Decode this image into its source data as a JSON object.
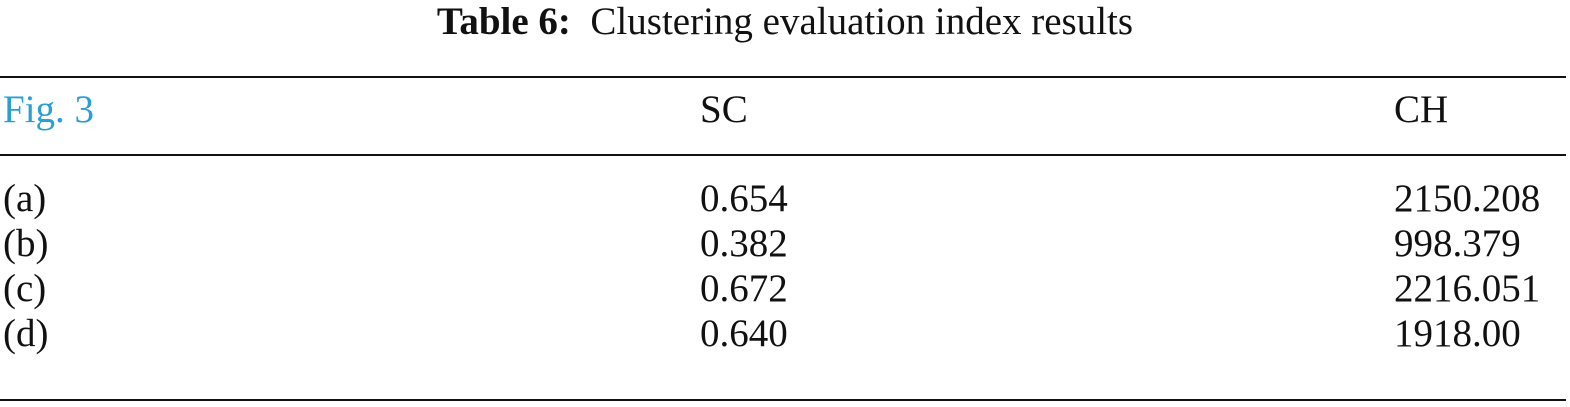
{
  "caption": {
    "label": "Table 6:",
    "text": "Clustering evaluation index results"
  },
  "table": {
    "header": [
      "Fig. 3",
      "SC",
      "CH"
    ],
    "rows": [
      [
        "(a)",
        "0.654",
        "2150.208"
      ],
      [
        "(b)",
        "0.382",
        "998.379"
      ],
      [
        "(c)",
        "0.672",
        "2216.051"
      ],
      [
        "(d)",
        "0.640",
        "1918.00"
      ]
    ]
  }
}
